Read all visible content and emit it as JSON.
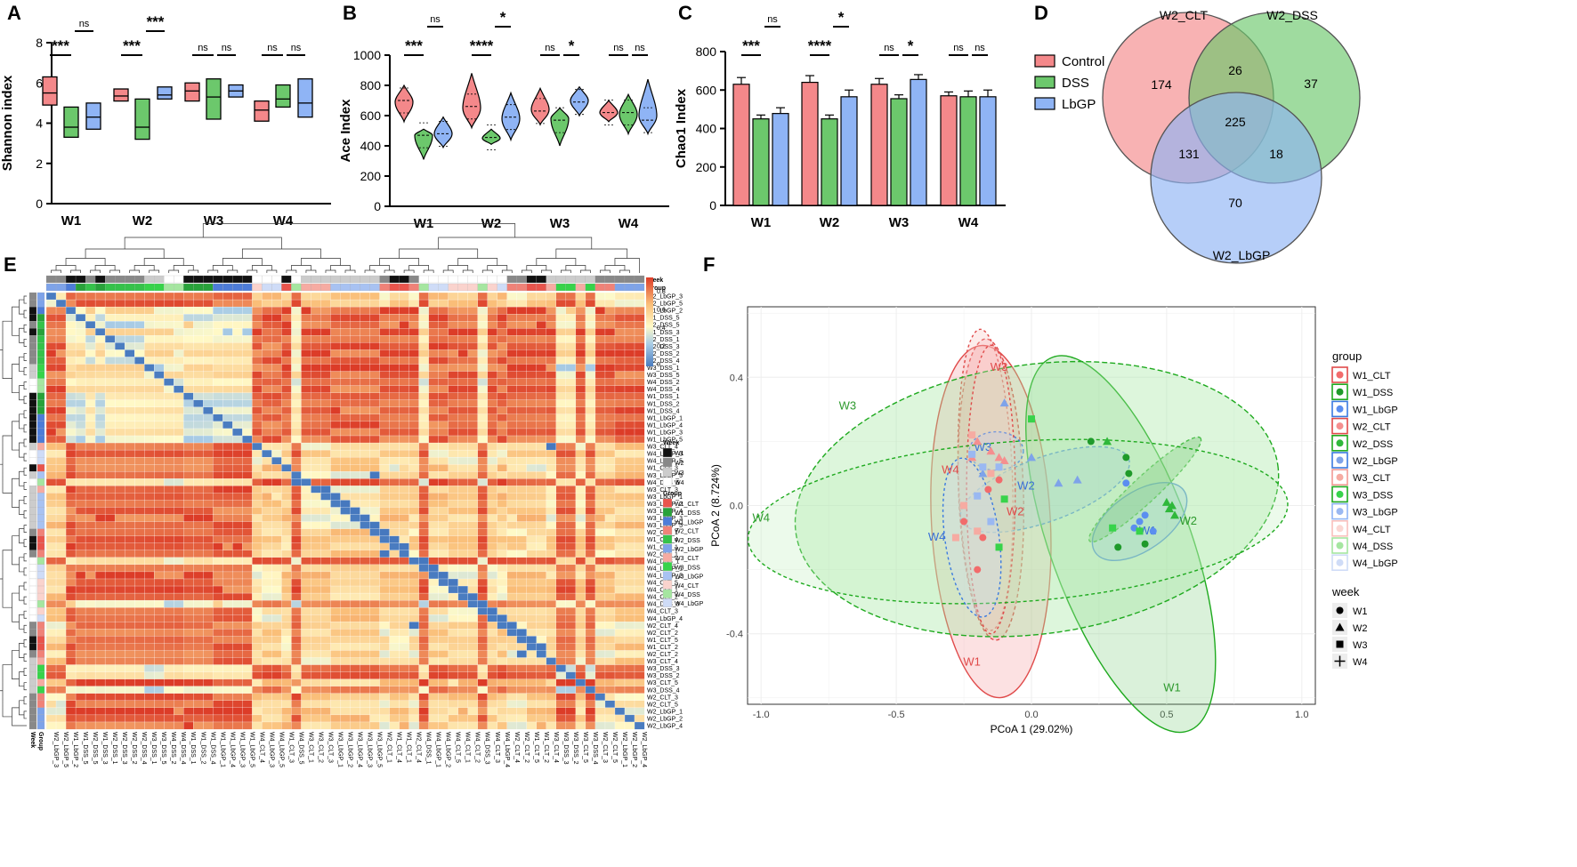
{
  "colors": {
    "control": "#f4888a",
    "dss": "#6cc86c",
    "lbgp": "#8fb4f5",
    "control_edge": "#d9453f",
    "dss_edge": "#2e9a2e",
    "lbgp_edge": "#3a6fd8",
    "black": "#111111"
  },
  "panel_labels": {
    "A": "A",
    "B": "B",
    "C": "C",
    "D": "D",
    "E": "E",
    "F": "F"
  },
  "weeks": [
    "W1",
    "W2",
    "W3",
    "W4"
  ],
  "sig": {
    "A": [
      {
        "cd": "***",
        "dl": "ns"
      },
      {
        "cd": "***",
        "dl": "***"
      },
      {
        "cd": "ns",
        "dl": "ns"
      },
      {
        "cd": "ns",
        "dl": "ns"
      }
    ],
    "B": [
      {
        "cd": "***",
        "dl": "ns"
      },
      {
        "cd": "****",
        "dl": "*"
      },
      {
        "cd": "ns",
        "dl": "*"
      },
      {
        "cd": "ns",
        "dl": "ns"
      }
    ],
    "C": [
      {
        "cd": "***",
        "dl": "ns"
      },
      {
        "cd": "****",
        "dl": "*"
      },
      {
        "cd": "ns",
        "dl": "*"
      },
      {
        "cd": "ns",
        "dl": "ns"
      }
    ]
  },
  "chart_data": [
    {
      "panel": "A",
      "type": "box",
      "title": "",
      "ylabel": "Shannon index",
      "ylim": [
        0,
        8
      ],
      "yticks": [
        "0",
        "2",
        "4",
        "6",
        "8"
      ],
      "categories": [
        "W1",
        "W2",
        "W3",
        "W4"
      ],
      "series": [
        {
          "name": "Control",
          "boxes": [
            [
              4.9,
              5.5,
              6.3
            ],
            [
              5.1,
              5.35,
              5.7
            ],
            [
              5.1,
              5.6,
              6.0
            ],
            [
              4.1,
              4.65,
              5.1
            ]
          ]
        },
        {
          "name": "DSS",
          "boxes": [
            [
              3.3,
              3.8,
              4.8
            ],
            [
              3.2,
              3.8,
              5.2
            ],
            [
              4.2,
              5.3,
              6.2
            ],
            [
              4.8,
              5.2,
              5.9
            ]
          ]
        },
        {
          "name": "LbGP",
          "boxes": [
            [
              3.7,
              4.3,
              5.0
            ],
            [
              5.2,
              5.4,
              5.8
            ],
            [
              5.3,
              5.6,
              5.9
            ],
            [
              4.3,
              5.0,
              6.2
            ]
          ]
        }
      ]
    },
    {
      "panel": "B",
      "type": "violin",
      "ylabel": "Ace Index",
      "ylim": [
        0,
        1000
      ],
      "yticks": [
        "0",
        "200",
        "400",
        "600",
        "800",
        "1000"
      ],
      "categories": [
        "W1",
        "W2",
        "W3",
        "W4"
      ],
      "series": [
        {
          "name": "Control",
          "violins": [
            [
              560,
              690,
              800,
              700
            ],
            [
              520,
              650,
              880,
              660
            ],
            [
              540,
              640,
              780,
              630
            ],
            [
              560,
              620,
              700,
              620
            ]
          ]
        },
        {
          "name": "DSS",
          "violins": [
            [
              310,
              470,
              510,
              470
            ],
            [
              410,
              450,
              510,
              455
            ],
            [
              400,
              580,
              650,
              570
            ],
            [
              480,
              610,
              740,
              620
            ]
          ]
        },
        {
          "name": "LbGP",
          "violins": [
            [
              390,
              480,
              590,
              480
            ],
            [
              440,
              580,
              750,
              590
            ],
            [
              600,
              700,
              790,
              690
            ],
            [
              480,
              600,
              840,
              570
            ]
          ]
        }
      ]
    },
    {
      "panel": "C",
      "type": "bar",
      "ylabel": "Chao1 Index",
      "ylim": [
        0,
        800
      ],
      "yticks": [
        "0",
        "200",
        "400",
        "600",
        "800"
      ],
      "categories": [
        "W1",
        "W2",
        "W3",
        "W4"
      ],
      "series": [
        {
          "name": "Control",
          "values": [
            630,
            640,
            630,
            570
          ],
          "errors": [
            35,
            35,
            30,
            20
          ]
        },
        {
          "name": "DSS",
          "values": [
            450,
            450,
            555,
            565
          ],
          "errors": [
            20,
            20,
            20,
            30
          ]
        },
        {
          "name": "LbGP",
          "values": [
            478,
            565,
            655,
            565
          ],
          "errors": [
            30,
            35,
            25,
            35
          ]
        }
      ]
    },
    {
      "panel": "D",
      "type": "venn",
      "sets": [
        "W2_CLT",
        "W2_DSS",
        "W2_LbGP"
      ],
      "regions": {
        "clt_only": "174",
        "dss_only": "37",
        "lbgp_only": "70",
        "clt_dss": "26",
        "clt_lbgp": "131",
        "dss_lbgp": "18",
        "all": "225"
      }
    },
    {
      "panel": "E",
      "type": "heatmap",
      "samples": [
        "W2_LbGP_3",
        "W2_LbGP_5",
        "W1_LbGP_2",
        "W1_DSS_5",
        "W2_DSS_5",
        "W1_DSS_3",
        "W2_DSS_1",
        "W2_DSS_3",
        "W2_DSS_2",
        "W2_DSS_4",
        "W3_DSS_1",
        "W3_DSS_5",
        "W4_DSS_2",
        "W4_DSS_4",
        "W1_DSS_1",
        "W1_DSS_2",
        "W1_DSS_4",
        "W1_LbGP_1",
        "W1_LbGP_4",
        "W1_LbGP_3",
        "W1_LbGP_5",
        "W3_CLT_4",
        "W4_LbGP_3",
        "W4_LbGP_5",
        "W1_CLT_3",
        "W3_LbGP_5",
        "W4_DSS_5",
        "W3_CLT_3",
        "W3_LbGP_1",
        "W3_LbGP_2",
        "W3_LbGP_4",
        "W3_LbGP_3",
        "W3_LbGP_5",
        "W2_CLT_1",
        "W1_CLT_4",
        "W1_CLT_1",
        "W2_CLT_1",
        "W4_DSS_1",
        "W4_LbGP_1",
        "W4_LbGP_2",
        "W4_CLT_5",
        "W4_CLT_1",
        "W4_CLT_2",
        "W4_DSS_3",
        "W4_CLT_3",
        "W4_LbGP_4",
        "W2_CLT_4",
        "W2_CLT_2",
        "W1_CLT_5",
        "W1_CLT_2",
        "W2_CLT_2",
        "W3_CLT_4",
        "W3_DSS_3",
        "W3_DSS_2",
        "W3_CLT_5",
        "W3_DSS_4",
        "W2_CLT_3",
        "W2_CLT_5",
        "W2_LbGP_1",
        "W2_LbGP_2",
        "W2_LbGP_4"
      ],
      "col_samples": [
        "W2_LbGP_3",
        "W2_LbGP_5",
        "W1_LbGP_2",
        "W1_DSS_5",
        "W2_DSS_5",
        "W1_DSS_3",
        "W2_DSS_1",
        "W2_DSS_3",
        "W2_DSS_2",
        "W2_DSS_4",
        "W3_DSS_1",
        "W3_DSS_5",
        "W4_DSS_2",
        "W4_DSS_4",
        "W1_DSS_1",
        "W1_DSS_2",
        "W1_DSS_4",
        "W1_LbGP_1",
        "W1_LbGP_4",
        "W1_LbGP_3",
        "W1_LbGP_5",
        "W4_CLT_4",
        "W4_LbGP_3",
        "W4_LbGP_5",
        "W1_CLT_3",
        "W4_DSS_5",
        "W3_CLT_1",
        "W3_CLT_2",
        "W3_CLT_3",
        "W3_LbGP_1",
        "W3_LbGP_2",
        "W3_LbGP_4",
        "W3_LbGP_3",
        "W3_LbGP_5",
        "W2_CLT_1",
        "W1_CLT_4",
        "W1_CLT_1",
        "W2_CLT_4",
        "W4_DSS_1",
        "W4_LbGP_1",
        "W4_LbGP_2",
        "W4_CLT_5",
        "W4_CLT_1",
        "W4_CLT_2",
        "W4_DSS_3",
        "W4_CLT_3",
        "W4_LbGP_4",
        "W2_CLT_4",
        "W2_CLT_2",
        "W1_CLT_5",
        "W1_CLT_2",
        "W3_CLT_4",
        "W3_DSS_3",
        "W3_DSS_2",
        "W3_CLT_5",
        "W3_DSS_4",
        "W2_CLT_3",
        "W2_CLT_5",
        "W2_LbGP_1",
        "W2_LbGP_2",
        "W2_LbGP_4"
      ],
      "color_scale": {
        "min": 0,
        "max": 0.8,
        "ticks": [
          "0.8",
          "0.6",
          "0.4",
          "0.2",
          "0"
        ]
      },
      "annotation_labels": {
        "week": "Week",
        "group": "Group"
      },
      "legend_week": [
        "W1",
        "W2",
        "W3",
        "W4"
      ],
      "legend_group": [
        "W1_CLT",
        "W1_DSS",
        "W1_LbGP",
        "W2_CLT",
        "W2_DSS",
        "W2_LbGP",
        "W3_CLT",
        "W3_DSS",
        "W3_LbGP",
        "W4_CLT",
        "W4_DSS",
        "W4_LbGP"
      ]
    },
    {
      "panel": "F",
      "type": "scatter",
      "xlabel": "PCoA 1 (29.02%)",
      "ylabel": "PCoA 2 (8.724%)",
      "xlim": [
        -1.05,
        1.05
      ],
      "ylim": [
        -0.62,
        0.62
      ],
      "xticks": [
        "-1.0",
        "-0.5",
        "0.0",
        "0.5",
        "1.0"
      ],
      "yticks": [
        "0.4",
        "0.0",
        "-0.4"
      ],
      "legend_group_title": "group",
      "legend_week_title": "week",
      "groups": [
        "W1_CLT",
        "W1_DSS",
        "W1_LbGP",
        "W2_CLT",
        "W2_DSS",
        "W2_LbGP",
        "W3_CLT",
        "W3_DSS",
        "W3_LbGP",
        "W4_CLT",
        "W4_DSS",
        "W4_LbGP"
      ],
      "weeks": [
        "W1",
        "W2",
        "W3",
        "W4"
      ],
      "ellipse_labels": [
        "W1",
        "W2",
        "W3",
        "W4",
        "W1",
        "W2",
        "W3",
        "W4",
        "W1",
        "W2",
        "W3",
        "W4"
      ],
      "points": [
        [
          -0.2,
          -0.2,
          "W1_CLT"
        ],
        [
          -0.18,
          -0.1,
          "W1_CLT"
        ],
        [
          -0.12,
          0.08,
          "W1_CLT"
        ],
        [
          -0.25,
          -0.05,
          "W1_CLT"
        ],
        [
          -0.16,
          0.05,
          "W1_CLT"
        ],
        [
          0.22,
          0.2,
          "W1_DSS"
        ],
        [
          0.32,
          -0.13,
          "W1_DSS"
        ],
        [
          0.35,
          0.15,
          "W1_DSS"
        ],
        [
          0.42,
          -0.12,
          "W1_DSS"
        ],
        [
          0.36,
          0.1,
          "W1_DSS"
        ],
        [
          0.35,
          0.07,
          "W1_LbGP"
        ],
        [
          0.4,
          -0.05,
          "W1_LbGP"
        ],
        [
          0.42,
          -0.03,
          "W1_LbGP"
        ],
        [
          0.45,
          -0.08,
          "W1_LbGP"
        ],
        [
          0.38,
          -0.07,
          "W1_LbGP"
        ],
        [
          -0.2,
          0.2,
          "W2_CLT"
        ],
        [
          -0.12,
          0.15,
          "W2_CLT"
        ],
        [
          -0.15,
          0.17,
          "W2_CLT"
        ],
        [
          -0.22,
          0.15,
          "W2_CLT"
        ],
        [
          -0.1,
          0.14,
          "W2_CLT"
        ],
        [
          0.28,
          0.2,
          "W2_DSS"
        ],
        [
          0.5,
          0.01,
          "W2_DSS"
        ],
        [
          0.52,
          0.0,
          "W2_DSS"
        ],
        [
          0.53,
          -0.03,
          "W2_DSS"
        ],
        [
          0.51,
          -0.01,
          "W2_DSS"
        ],
        [
          -0.1,
          0.32,
          "W2_LbGP"
        ],
        [
          0.0,
          0.15,
          "W2_LbGP"
        ],
        [
          0.17,
          0.08,
          "W2_LbGP"
        ],
        [
          0.1,
          0.07,
          "W2_LbGP"
        ],
        [
          -0.18,
          0.1,
          "W2_LbGP"
        ],
        [
          -0.25,
          0.0,
          "W3_CLT"
        ],
        [
          -0.2,
          -0.08,
          "W3_CLT"
        ],
        [
          -0.15,
          0.1,
          "W3_CLT"
        ],
        [
          -0.22,
          0.22,
          "W3_CLT"
        ],
        [
          -0.28,
          -0.1,
          "W3_CLT"
        ],
        [
          -0.1,
          0.02,
          "W3_DSS"
        ],
        [
          -0.12,
          -0.13,
          "W3_DSS"
        ],
        [
          0.3,
          -0.07,
          "W3_DSS"
        ],
        [
          0.4,
          -0.08,
          "W3_DSS"
        ],
        [
          0.0,
          0.27,
          "W3_DSS"
        ],
        [
          -0.18,
          0.12,
          "W3_LbGP"
        ],
        [
          -0.22,
          0.16,
          "W3_LbGP"
        ],
        [
          -0.15,
          -0.05,
          "W3_LbGP"
        ],
        [
          -0.2,
          0.03,
          "W3_LbGP"
        ],
        [
          -0.12,
          0.12,
          "W3_LbGP"
        ]
      ]
    }
  ]
}
